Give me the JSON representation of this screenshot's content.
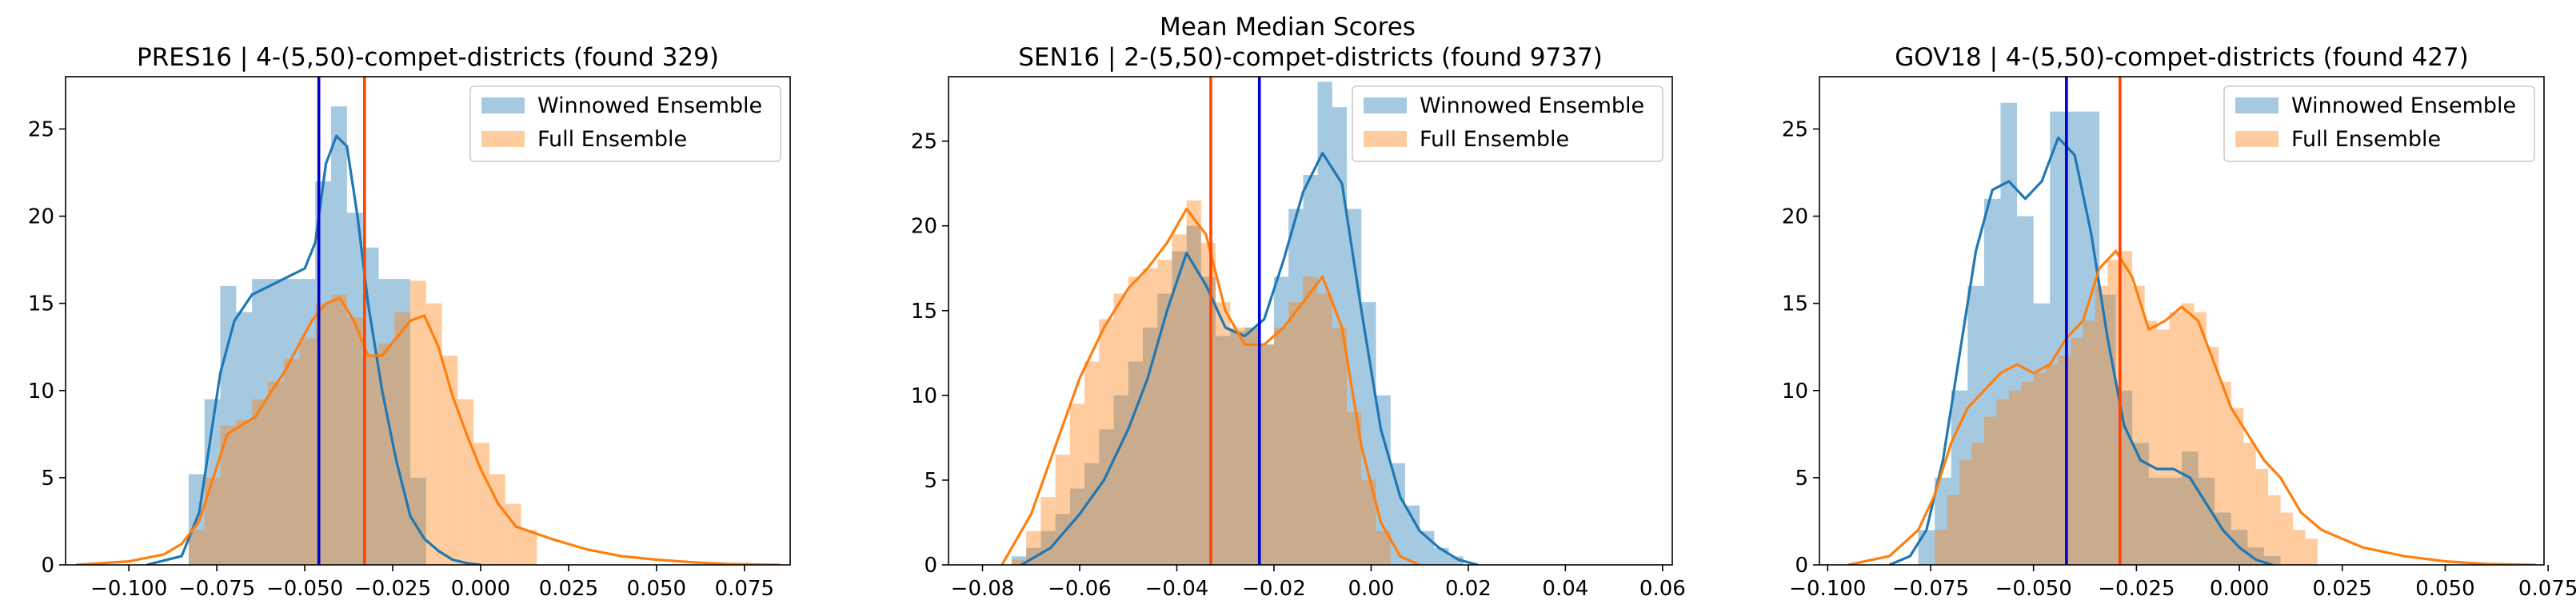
{
  "figure": {
    "suptitle": "Mean Median Scores",
    "colors": {
      "winnowed_fill": "#1f77b4",
      "winnowed_line": "#1f77b4",
      "full_fill": "#ff7f0e",
      "full_line": "#ff7f0e",
      "blue_vline": "#0000cc",
      "red_vline": "#ff4500"
    }
  },
  "chart_data": [
    {
      "type": "histogram-kde",
      "title": "PRES16 | 4-(5,50)-compet-districts (found 329)",
      "xlim": [
        -0.118,
        0.088
      ],
      "ylim": [
        0,
        28
      ],
      "xticks": [
        -0.1,
        -0.075,
        -0.05,
        -0.025,
        0.0,
        0.025,
        0.05,
        0.075
      ],
      "xtick_labels": [
        "−0.100",
        "−0.075",
        "−0.050",
        "−0.025",
        "0.000",
        "0.025",
        "0.050",
        "0.075"
      ],
      "yticks": [
        0,
        5,
        10,
        15,
        20,
        25
      ],
      "ytick_labels": [
        "0",
        "5",
        "10",
        "15",
        "20",
        "25"
      ],
      "legend": {
        "position": "top-right",
        "entries": [
          "Winnowed Ensemble",
          "Full Ensemble"
        ]
      },
      "vlines": [
        {
          "x": -0.046,
          "color": "blue"
        },
        {
          "x": -0.033,
          "color": "red"
        }
      ],
      "series": [
        {
          "name": "Winnowed Ensemble",
          "hist_bins": [
            -0.083,
            -0.0785,
            -0.074,
            -0.0695,
            -0.065,
            -0.0605,
            -0.056,
            -0.0515,
            -0.047,
            -0.0425,
            -0.038,
            -0.0335,
            -0.029,
            -0.0245,
            -0.02,
            -0.0155,
            -0.011
          ],
          "hist_values": [
            5.2,
            9.5,
            16,
            14.5,
            16.4,
            16.4,
            16.4,
            16.4,
            22,
            26.3,
            20.2,
            18.2,
            16.4,
            16.4,
            5,
            0
          ],
          "kde_x": [
            -0.095,
            -0.085,
            -0.08,
            -0.077,
            -0.074,
            -0.07,
            -0.065,
            -0.06,
            -0.055,
            -0.05,
            -0.047,
            -0.044,
            -0.041,
            -0.038,
            -0.035,
            -0.032,
            -0.028,
            -0.024,
            -0.02,
            -0.016,
            -0.012,
            -0.008,
            -0.004,
            0.0
          ],
          "kde_y": [
            0,
            0.5,
            3,
            7,
            11,
            14,
            15.5,
            16,
            16.5,
            17,
            18.5,
            23,
            24.6,
            24,
            20,
            15,
            10,
            6,
            2.8,
            1.5,
            0.8,
            0.3,
            0.1,
            0
          ]
        },
        {
          "name": "Full Ensemble",
          "hist_bins": [
            -0.083,
            -0.0785,
            -0.074,
            -0.0695,
            -0.065,
            -0.0605,
            -0.056,
            -0.0515,
            -0.047,
            -0.0425,
            -0.038,
            -0.0335,
            -0.029,
            -0.0245,
            -0.02,
            -0.0155,
            -0.011,
            -0.0065,
            -0.002,
            0.0025,
            0.007,
            0.0115,
            0.016
          ],
          "hist_values": [
            2,
            5,
            8,
            8.3,
            9.5,
            10.5,
            11.8,
            13,
            15,
            15.5,
            14.2,
            12,
            12.7,
            14.5,
            16.3,
            15,
            12,
            9.5,
            7,
            5.2,
            3.5,
            2
          ],
          "kde_x": [
            -0.115,
            -0.1,
            -0.09,
            -0.085,
            -0.08,
            -0.076,
            -0.072,
            -0.068,
            -0.064,
            -0.06,
            -0.056,
            -0.052,
            -0.048,
            -0.044,
            -0.04,
            -0.036,
            -0.032,
            -0.028,
            -0.024,
            -0.02,
            -0.016,
            -0.012,
            -0.008,
            -0.004,
            0.0,
            0.005,
            0.01,
            0.02,
            0.03,
            0.04,
            0.05,
            0.06,
            0.07,
            0.085
          ],
          "kde_y": [
            0,
            0.2,
            0.6,
            1.2,
            2.5,
            5,
            7.5,
            8,
            8.5,
            9.8,
            11,
            12.5,
            14,
            15,
            15.3,
            14,
            12,
            12,
            13,
            14,
            14.3,
            12.5,
            9.7,
            7.5,
            5.5,
            3.5,
            2.2,
            1.5,
            0.9,
            0.5,
            0.3,
            0.15,
            0.05,
            0
          ]
        }
      ]
    },
    {
      "type": "histogram-kde",
      "title": "SEN16 | 2-(5,50)-compet-districts (found 9737)",
      "xlim": [
        -0.087,
        0.062
      ],
      "ylim": [
        0,
        28.8
      ],
      "xticks": [
        -0.08,
        -0.06,
        -0.04,
        -0.02,
        0.0,
        0.02,
        0.04,
        0.06
      ],
      "xtick_labels": [
        "−0.08",
        "−0.06",
        "−0.04",
        "−0.02",
        "0.00",
        "0.02",
        "0.04",
        "0.06"
      ],
      "yticks": [
        0,
        5,
        10,
        15,
        20,
        25
      ],
      "ytick_labels": [
        "0",
        "5",
        "10",
        "15",
        "20",
        "25"
      ],
      "legend": {
        "position": "top-right",
        "entries": [
          "Winnowed Ensemble",
          "Full Ensemble"
        ]
      },
      "vlines": [
        {
          "x": -0.033,
          "color": "red"
        },
        {
          "x": -0.023,
          "color": "blue"
        }
      ],
      "series": [
        {
          "name": "Winnowed Ensemble",
          "hist_bins": [
            -0.074,
            -0.071,
            -0.068,
            -0.065,
            -0.062,
            -0.059,
            -0.056,
            -0.053,
            -0.05,
            -0.047,
            -0.044,
            -0.041,
            -0.038,
            -0.035,
            -0.032,
            -0.029,
            -0.026,
            -0.023,
            -0.02,
            -0.017,
            -0.014,
            -0.011,
            -0.008,
            -0.005,
            -0.002,
            0.001,
            0.004,
            0.007,
            0.01,
            0.013,
            0.016,
            0.019
          ],
          "hist_values": [
            0.5,
            1,
            2,
            3,
            4.5,
            6,
            8,
            10,
            12,
            14,
            16,
            18.5,
            20,
            17,
            13.5,
            13.8,
            14,
            13,
            17,
            21,
            23,
            28.5,
            27,
            21,
            15.5,
            10,
            6,
            3.5,
            2,
            1,
            0.5
          ],
          "kde_x": [
            -0.072,
            -0.066,
            -0.06,
            -0.055,
            -0.05,
            -0.046,
            -0.042,
            -0.038,
            -0.034,
            -0.03,
            -0.026,
            -0.022,
            -0.018,
            -0.014,
            -0.01,
            -0.006,
            -0.002,
            0.002,
            0.006,
            0.01,
            0.014,
            0.018,
            0.022
          ],
          "kde_y": [
            0,
            1,
            3,
            5,
            8,
            11,
            15,
            18.4,
            16.5,
            14,
            13.5,
            14.5,
            18,
            22,
            24.3,
            22.5,
            15,
            8,
            4,
            2,
            1,
            0.3,
            0
          ]
        },
        {
          "name": "Full Ensemble",
          "hist_bins": [
            -0.074,
            -0.071,
            -0.068,
            -0.065,
            -0.062,
            -0.059,
            -0.056,
            -0.053,
            -0.05,
            -0.047,
            -0.044,
            -0.041,
            -0.038,
            -0.035,
            -0.032,
            -0.029,
            -0.026,
            -0.023,
            -0.02,
            -0.017,
            -0.014,
            -0.011,
            -0.008,
            -0.005,
            -0.002,
            0.001,
            0.004
          ],
          "hist_values": [
            0.3,
            2,
            4,
            6.5,
            9.5,
            12,
            14.5,
            16,
            17,
            17.5,
            18,
            19.5,
            21.5,
            19,
            15.5,
            14,
            14,
            13,
            14,
            15.5,
            17,
            16,
            14,
            9,
            5,
            2
          ],
          "kde_x": [
            -0.076,
            -0.07,
            -0.065,
            -0.06,
            -0.055,
            -0.05,
            -0.046,
            -0.042,
            -0.038,
            -0.034,
            -0.03,
            -0.026,
            -0.022,
            -0.018,
            -0.014,
            -0.01,
            -0.006,
            -0.002,
            0.002,
            0.006,
            0.01
          ],
          "kde_y": [
            0,
            3,
            7,
            11,
            14,
            16.3,
            17.5,
            19,
            21,
            19.5,
            15,
            13,
            13,
            14,
            15.5,
            17,
            14,
            7,
            2.5,
            0.5,
            0
          ]
        }
      ]
    },
    {
      "type": "histogram-kde",
      "title": "GOV18 | 4-(5,50)-compet-districts (found 427)",
      "xlim": [
        -0.102,
        0.074
      ],
      "ylim": [
        0,
        28
      ],
      "xticks": [
        -0.1,
        -0.075,
        -0.05,
        -0.025,
        0.0,
        0.025,
        0.05,
        0.075
      ],
      "xtick_labels": [
        "−0.100",
        "−0.075",
        "−0.050",
        "−0.025",
        "0.000",
        "0.025",
        "0.050",
        "0.075"
      ],
      "yticks": [
        0,
        5,
        10,
        15,
        20,
        25
      ],
      "ytick_labels": [
        "0",
        "5",
        "10",
        "15",
        "20",
        "25"
      ],
      "legend": {
        "position": "top-right",
        "entries": [
          "Winnowed Ensemble",
          "Full Ensemble"
        ]
      },
      "vlines": [
        {
          "x": -0.042,
          "color": "blue"
        },
        {
          "x": -0.029,
          "color": "red"
        }
      ],
      "series": [
        {
          "name": "Winnowed Ensemble",
          "hist_bins": [
            -0.078,
            -0.074,
            -0.07,
            -0.066,
            -0.062,
            -0.058,
            -0.054,
            -0.05,
            -0.046,
            -0.042,
            -0.038,
            -0.034,
            -0.03,
            -0.026,
            -0.022,
            -0.018,
            -0.014,
            -0.01,
            -0.006,
            -0.002,
            0.002,
            0.006,
            0.01,
            0.014
          ],
          "hist_values": [
            2,
            5,
            10,
            16,
            21,
            26.5,
            20,
            15,
            26,
            26,
            26,
            15.5,
            10,
            7,
            5,
            5,
            6.5,
            5,
            3,
            2,
            1,
            0.5,
            0
          ],
          "kde_x": [
            -0.085,
            -0.08,
            -0.076,
            -0.072,
            -0.068,
            -0.064,
            -0.06,
            -0.056,
            -0.052,
            -0.048,
            -0.044,
            -0.04,
            -0.036,
            -0.032,
            -0.028,
            -0.024,
            -0.02,
            -0.016,
            -0.012,
            -0.008,
            -0.004,
            0.0,
            0.004,
            0.008
          ],
          "kde_y": [
            0,
            0.5,
            2,
            6,
            12,
            18,
            21.5,
            22,
            21,
            22,
            24.5,
            23.5,
            19,
            13,
            8,
            6,
            5.5,
            5.5,
            5,
            3.5,
            2,
            1,
            0.3,
            0
          ]
        },
        {
          "name": "Full Ensemble",
          "hist_bins": [
            -0.074,
            -0.071,
            -0.068,
            -0.065,
            -0.062,
            -0.059,
            -0.056,
            -0.053,
            -0.05,
            -0.047,
            -0.044,
            -0.041,
            -0.038,
            -0.035,
            -0.032,
            -0.029,
            -0.026,
            -0.023,
            -0.02,
            -0.017,
            -0.014,
            -0.011,
            -0.008,
            -0.005,
            -0.002,
            0.001,
            0.004,
            0.007,
            0.01,
            0.013,
            0.016,
            0.019
          ],
          "hist_values": [
            2,
            4,
            6,
            7,
            8.5,
            9.5,
            10,
            10.5,
            11,
            11.5,
            12,
            13,
            14,
            16,
            17.5,
            18,
            16,
            14,
            13.5,
            14.5,
            15,
            14.5,
            12.5,
            10.5,
            9,
            7,
            5.5,
            4,
            3,
            2,
            1.5
          ],
          "kde_x": [
            -0.095,
            -0.085,
            -0.078,
            -0.074,
            -0.07,
            -0.066,
            -0.062,
            -0.058,
            -0.054,
            -0.05,
            -0.046,
            -0.042,
            -0.038,
            -0.034,
            -0.03,
            -0.026,
            -0.022,
            -0.018,
            -0.014,
            -0.01,
            -0.006,
            -0.002,
            0.002,
            0.006,
            0.01,
            0.015,
            0.02,
            0.03,
            0.04,
            0.05,
            0.06,
            0.072
          ],
          "kde_y": [
            0,
            0.5,
            2,
            4,
            7,
            9,
            10,
            11,
            11.5,
            11,
            11.5,
            13,
            14,
            17,
            18,
            16.5,
            13.5,
            14,
            14.8,
            14,
            11.5,
            9,
            7.5,
            6,
            5,
            3,
            2,
            1,
            0.5,
            0.2,
            0.05,
            0
          ]
        }
      ]
    }
  ]
}
